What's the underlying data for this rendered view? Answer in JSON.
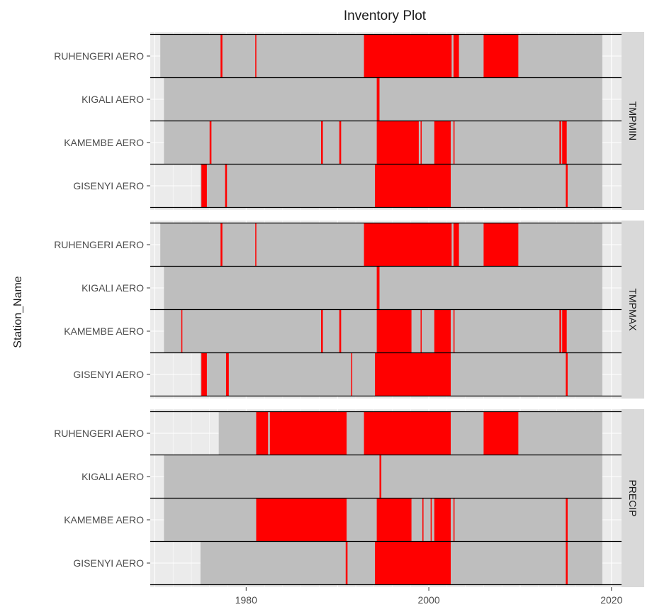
{
  "chart_data": {
    "type": "inventory",
    "title": "Inventory Plot",
    "ylabel": "Station_Name",
    "xlabel": "",
    "xlim": [
      1969.5,
      2021.1
    ],
    "x_ticks": [
      1980,
      2000,
      2020
    ],
    "stations": [
      "RUHENGERI AERO",
      "KIGALI AERO",
      "KAMEMBE AERO",
      "GISENYI AERO"
    ],
    "legend": "none",
    "grid": true,
    "colors": {
      "present": "#bebebe",
      "missing": "#ff0000",
      "panel_bg": "#ebebeb",
      "grid": "#ffffff",
      "strip_bg": "#d9d9d9",
      "separator": "#000000"
    },
    "panels": [
      {
        "facet": "TMPMIN",
        "stations": [
          {
            "name": "RUHENGERI AERO",
            "start": 1970.6,
            "end": 2019.0,
            "missing": [
              [
                1977.2,
                1977.4
              ],
              [
                1981.0,
                1981.1
              ],
              [
                1992.9,
                2002.5
              ],
              [
                2002.7,
                2003.3
              ],
              [
                2006.0,
                2009.8
              ]
            ]
          },
          {
            "name": "KIGALI AERO",
            "start": 1971.0,
            "end": 2019.0,
            "missing": [
              [
                1994.3,
                1994.6
              ]
            ]
          },
          {
            "name": "KAMEMBE AERO",
            "start": 1971.0,
            "end": 2019.0,
            "missing": [
              [
                1976.0,
                1976.2
              ],
              [
                1988.2,
                1988.4
              ],
              [
                1990.2,
                1990.4
              ],
              [
                1994.3,
                1998.9
              ],
              [
                1999.1,
                1999.2
              ],
              [
                2000.6,
                2002.4
              ],
              [
                2002.7,
                2002.8
              ],
              [
                2014.3,
                2014.5
              ],
              [
                2014.6,
                2015.1
              ]
            ]
          },
          {
            "name": "GISENYI AERO",
            "start": 1975.0,
            "end": 2019.0,
            "missing": [
              [
                1975.1,
                1975.7
              ],
              [
                1977.7,
                1977.9
              ],
              [
                1994.1,
                2002.4
              ],
              [
                2015.0,
                2015.2
              ]
            ]
          }
        ]
      },
      {
        "facet": "TMPMAX",
        "stations": [
          {
            "name": "RUHENGERI AERO",
            "start": 1970.6,
            "end": 2019.0,
            "missing": [
              [
                1977.2,
                1977.4
              ],
              [
                1981.0,
                1981.1
              ],
              [
                1992.9,
                2002.5
              ],
              [
                2002.7,
                2003.3
              ],
              [
                2006.0,
                2009.8
              ]
            ]
          },
          {
            "name": "KIGALI AERO",
            "start": 1971.0,
            "end": 2019.0,
            "missing": [
              [
                1994.3,
                1994.6
              ]
            ]
          },
          {
            "name": "KAMEMBE AERO",
            "start": 1971.0,
            "end": 2019.0,
            "missing": [
              [
                1972.9,
                1973.0
              ],
              [
                1988.2,
                1988.4
              ],
              [
                1990.2,
                1990.4
              ],
              [
                1994.3,
                1998.1
              ],
              [
                1999.1,
                1999.2
              ],
              [
                2000.6,
                2002.4
              ],
              [
                2002.7,
                2002.8
              ],
              [
                2014.3,
                2014.5
              ],
              [
                2014.6,
                2015.1
              ]
            ]
          },
          {
            "name": "GISENYI AERO",
            "start": 1975.0,
            "end": 2019.0,
            "missing": [
              [
                1975.1,
                1975.7
              ],
              [
                1977.8,
                1978.1
              ],
              [
                1991.5,
                1991.6
              ],
              [
                1994.1,
                2002.4
              ],
              [
                2015.0,
                2015.2
              ]
            ]
          }
        ]
      },
      {
        "facet": "PRECIP",
        "stations": [
          {
            "name": "RUHENGERI AERO",
            "start": 1977.0,
            "end": 2019.0,
            "missing": [
              [
                1981.1,
                1982.4
              ],
              [
                1982.6,
                1991.0
              ],
              [
                1992.9,
                2002.4
              ],
              [
                2006.0,
                2009.8
              ]
            ]
          },
          {
            "name": "KIGALI AERO",
            "start": 1971.0,
            "end": 2019.0,
            "missing": [
              [
                1994.6,
                1994.8
              ]
            ]
          },
          {
            "name": "KAMEMBE AERO",
            "start": 1971.0,
            "end": 2019.0,
            "missing": [
              [
                1981.1,
                1991.0
              ],
              [
                1994.3,
                1998.1
              ],
              [
                1999.3,
                1999.4
              ],
              [
                2000.2,
                2000.3
              ],
              [
                2000.6,
                2002.4
              ],
              [
                2002.7,
                2002.8
              ],
              [
                2015.0,
                2015.2
              ]
            ]
          },
          {
            "name": "GISENYI AERO",
            "start": 1975.0,
            "end": 2019.0,
            "missing": [
              [
                1990.9,
                1991.1
              ],
              [
                1994.1,
                2002.4
              ],
              [
                2015.0,
                2015.2
              ]
            ]
          }
        ]
      }
    ]
  }
}
